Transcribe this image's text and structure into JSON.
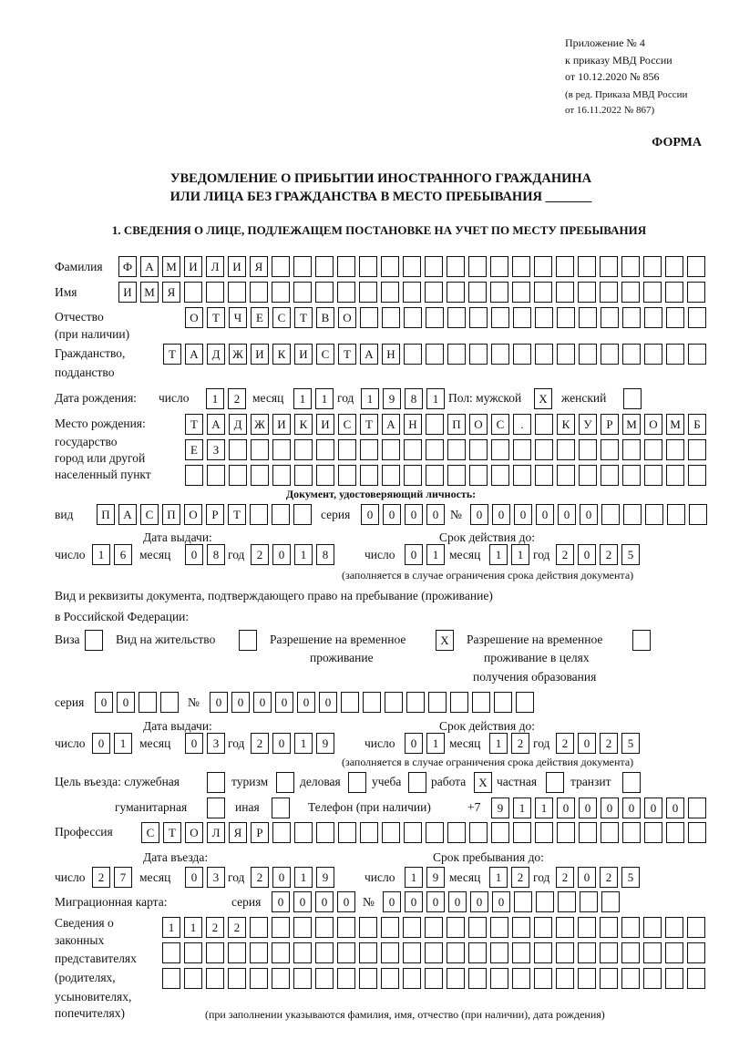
{
  "header": {
    "appendix": "Приложение № 4",
    "order": "к приказу МВД России",
    "order_date": "от 10.12.2020 № 856",
    "edition": "(в ред. Приказа МВД России",
    "edition_date": "от 16.11.2022 № 867)",
    "form_label": "ФОРМА",
    "title_line1": "УВЕДОМЛЕНИЕ О ПРИБЫТИИ ИНОСТРАННОГО ГРАЖДАНИНА",
    "title_line2": "ИЛИ ЛИЦА БЕЗ ГРАЖДАНСТВА В МЕСТО ПРЕБЫВАНИЯ _______",
    "section1": "1. СВЕДЕНИЯ О ЛИЦЕ, ПОДЛЕЖАЩЕМ ПОСТАНОВКЕ НА УЧЕТ ПО МЕСТУ ПРЕБЫВАНИЯ"
  },
  "labels": {
    "surname": "Фамилия",
    "name": "Имя",
    "patronymic": "Отчество",
    "patronymic_note": "(при наличии)",
    "citizenship": "Гражданство,",
    "citizenship2": "подданство",
    "birth_date": "Дата рождения:",
    "day": "число",
    "month": "месяц",
    "year": "год",
    "sex_male": "Пол: мужской",
    "sex_female": "женский",
    "birthplace1": "Место рождения:",
    "birthplace2": "государство",
    "birthplace3": "город или другой",
    "birthplace4": "населенный пункт",
    "id_doc": "Документ, удостоверяющий личность:",
    "kind": "вид",
    "series": "серия",
    "number": "№",
    "issue_date": "Дата выдачи:",
    "valid_until": "Срок действия до:",
    "validity_note": "(заполняется в случае ограничения срока действия документа)",
    "stay_doc1": "Вид и реквизиты документа, подтверждающего право на пребывание (проживание)",
    "stay_doc2": "в Российской Федерации:",
    "visa": "Виза",
    "residence": "Вид на жительство",
    "trp1": "Разрешение на временное",
    "trp2": "проживание",
    "trp_edu1": "Разрешение на временное",
    "trp_edu2": "проживание в целях",
    "trp_edu3": "получения образования",
    "purpose": "Цель въезда: служебная",
    "tourism": "туризм",
    "business": "деловая",
    "study": "учеба",
    "work": "работа",
    "private": "частная",
    "transit": "транзит",
    "humanitarian": "гуманитарная",
    "other": "иная",
    "phone": "Телефон (при наличии)",
    "phone_prefix": "+7",
    "profession": "Профессия",
    "entry_date": "Дата въезда:",
    "stay_until": "Срок пребывания до:",
    "migration_card": "Миграционная карта:",
    "reps1": "Сведения о",
    "reps2": "законных",
    "reps3": "представителях",
    "reps4": "(родителях,",
    "reps5": "усыновителях,",
    "reps6": "попечителях)",
    "reps_note": "(при заполнении указываются фамилия, имя, отчество (при наличии), дата рождения)"
  },
  "person": {
    "surname": "ФАМИЛИЯ",
    "name": "ИМЯ",
    "patronymic": "ОТЧЕСТВО",
    "citizenship": "ТАДЖИКИСТАН",
    "birth_day": "12",
    "birth_month": "11",
    "birth_year": "1981",
    "sex_male": "X",
    "sex_female": "",
    "birthplace_line1": "ТАДЖИКИСТАН ПОС. КУРМОМБ",
    "birthplace_line2": "ЕЗ",
    "birthplace_line3": ""
  },
  "id_document": {
    "kind": "ПАСПОРТ",
    "series": "0000",
    "number": "000000",
    "issue_day": "16",
    "issue_month": "08",
    "issue_year": "2018",
    "valid_day": "01",
    "valid_month": "11",
    "valid_year": "2025"
  },
  "stay_document": {
    "visa": "",
    "residence_permit": "",
    "temporary_residence": "X",
    "temporary_residence_edu": "",
    "series": "00",
    "number": "000000",
    "issue_day": "01",
    "issue_month": "03",
    "issue_year": "2019",
    "valid_day": "01",
    "valid_month": "12",
    "valid_year": "2025"
  },
  "purpose": {
    "official": "",
    "tourism": "",
    "business": "",
    "study": "",
    "work": "X",
    "private": "",
    "transit": "",
    "humanitarian": "",
    "other": ""
  },
  "phone": "911000000",
  "profession": "СТОЛЯР",
  "entry": {
    "entry_day": "27",
    "entry_month": "03",
    "entry_year": "2019",
    "stay_day": "19",
    "stay_month": "12",
    "stay_year": "2025"
  },
  "migration_card": {
    "series": "0000",
    "number": "000000"
  },
  "representatives": {
    "line1": "1122",
    "line2": "",
    "line3": ""
  }
}
